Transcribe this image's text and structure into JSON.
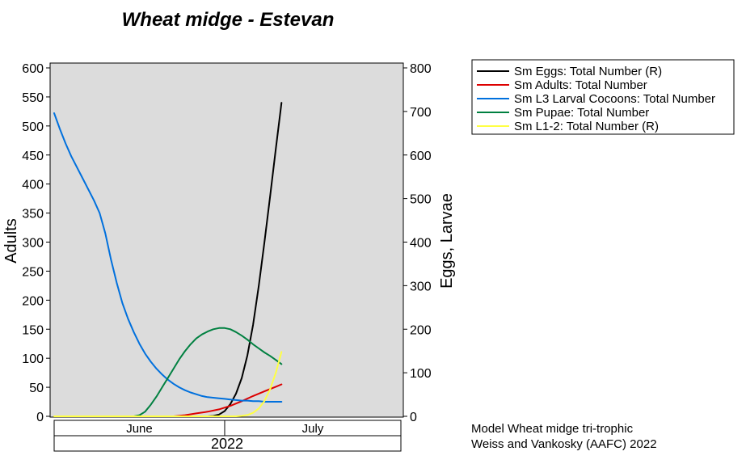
{
  "chart_data": {
    "type": "line",
    "title": "Wheat midge - Estevan",
    "ylabel_left": "Adults",
    "ylabel_right": "Eggs, Larvae",
    "ylim_left": [
      0,
      600
    ],
    "ylim_right": [
      0,
      800
    ],
    "yticks_left": [
      "0",
      "50",
      "100",
      "150",
      "200",
      "250",
      "300",
      "350",
      "400",
      "450",
      "500",
      "550",
      "600"
    ],
    "yticks_right": [
      "0",
      "100",
      "200",
      "300",
      "400",
      "500",
      "600",
      "700",
      "800"
    ],
    "x_axis": {
      "unit": "day of year",
      "range": [
        153,
        214
      ],
      "months": [
        {
          "label": "June",
          "start": 153,
          "end": 183
        },
        {
          "label": "July",
          "start": 183,
          "end": 214
        }
      ],
      "year": "2022"
    },
    "grid": false,
    "background_color": "#dcdcdc",
    "legend_position": "right",
    "series": [
      {
        "name": "Sm Eggs: Total Number (R)",
        "axis": "right",
        "color": "#000000",
        "x": [
          178,
          179,
          180,
          181,
          182,
          183,
          184,
          185,
          186,
          187,
          188,
          189,
          190,
          191,
          192,
          193
        ],
        "y": [
          0,
          0,
          0,
          1,
          4,
          12,
          28,
          52,
          88,
          140,
          210,
          300,
          400,
          505,
          615,
          720
        ]
      },
      {
        "name": "Sm Adults: Total Number",
        "axis": "left",
        "color": "#dd0000",
        "x": [
          170,
          172,
          174,
          176,
          178,
          180,
          182,
          184,
          186,
          188,
          190,
          192,
          193
        ],
        "y": [
          0,
          0,
          0,
          2,
          5,
          8,
          12,
          18,
          26,
          35,
          43,
          51,
          55
        ]
      },
      {
        "name": "Sm L3 Larval Cocoons: Total Number",
        "axis": "left",
        "color": "#0070dd",
        "x": [
          153,
          154,
          155,
          156,
          158,
          160,
          161,
          162,
          163,
          164,
          165,
          166,
          167,
          168,
          169,
          170,
          171,
          172,
          173,
          174,
          175,
          176,
          177,
          178,
          179,
          180,
          181,
          182,
          183,
          184,
          185,
          186,
          187,
          188,
          189,
          190,
          191,
          192,
          193
        ],
        "y": [
          522,
          495,
          470,
          448,
          410,
          372,
          350,
          315,
          270,
          230,
          195,
          168,
          145,
          125,
          108,
          94,
          82,
          72,
          63,
          56,
          50,
          45,
          41,
          38,
          35,
          33,
          32,
          31,
          30,
          29,
          28,
          27,
          27,
          26,
          26,
          25,
          25,
          25,
          25
        ]
      },
      {
        "name": "Sm Pupae: Total Number",
        "axis": "left",
        "color": "#008040",
        "x": [
          167,
          168,
          169,
          170,
          171,
          172,
          173,
          174,
          175,
          176,
          177,
          178,
          179,
          180,
          181,
          182,
          183,
          184,
          185,
          186,
          187,
          188,
          189,
          190,
          191,
          192,
          193
        ],
        "y": [
          0,
          2,
          8,
          20,
          34,
          50,
          66,
          82,
          98,
          112,
          124,
          134,
          141,
          146,
          150,
          152,
          152,
          150,
          145,
          139,
          132,
          124,
          117,
          110,
          104,
          97,
          90
        ]
      },
      {
        "name": "Sm L1-2: Total Number (R)",
        "axis": "right",
        "color": "#ffff44",
        "x": [
          153,
          160,
          170,
          180,
          185,
          186,
          187,
          188,
          189,
          190,
          191,
          192,
          193
        ],
        "y": [
          0,
          0,
          0,
          0,
          0,
          1,
          3,
          8,
          18,
          35,
          62,
          100,
          148
        ]
      }
    ]
  },
  "credits": {
    "line1": "Model Wheat midge tri-trophic",
    "line2": "Weiss and Vankosky (AAFC) 2022"
  }
}
